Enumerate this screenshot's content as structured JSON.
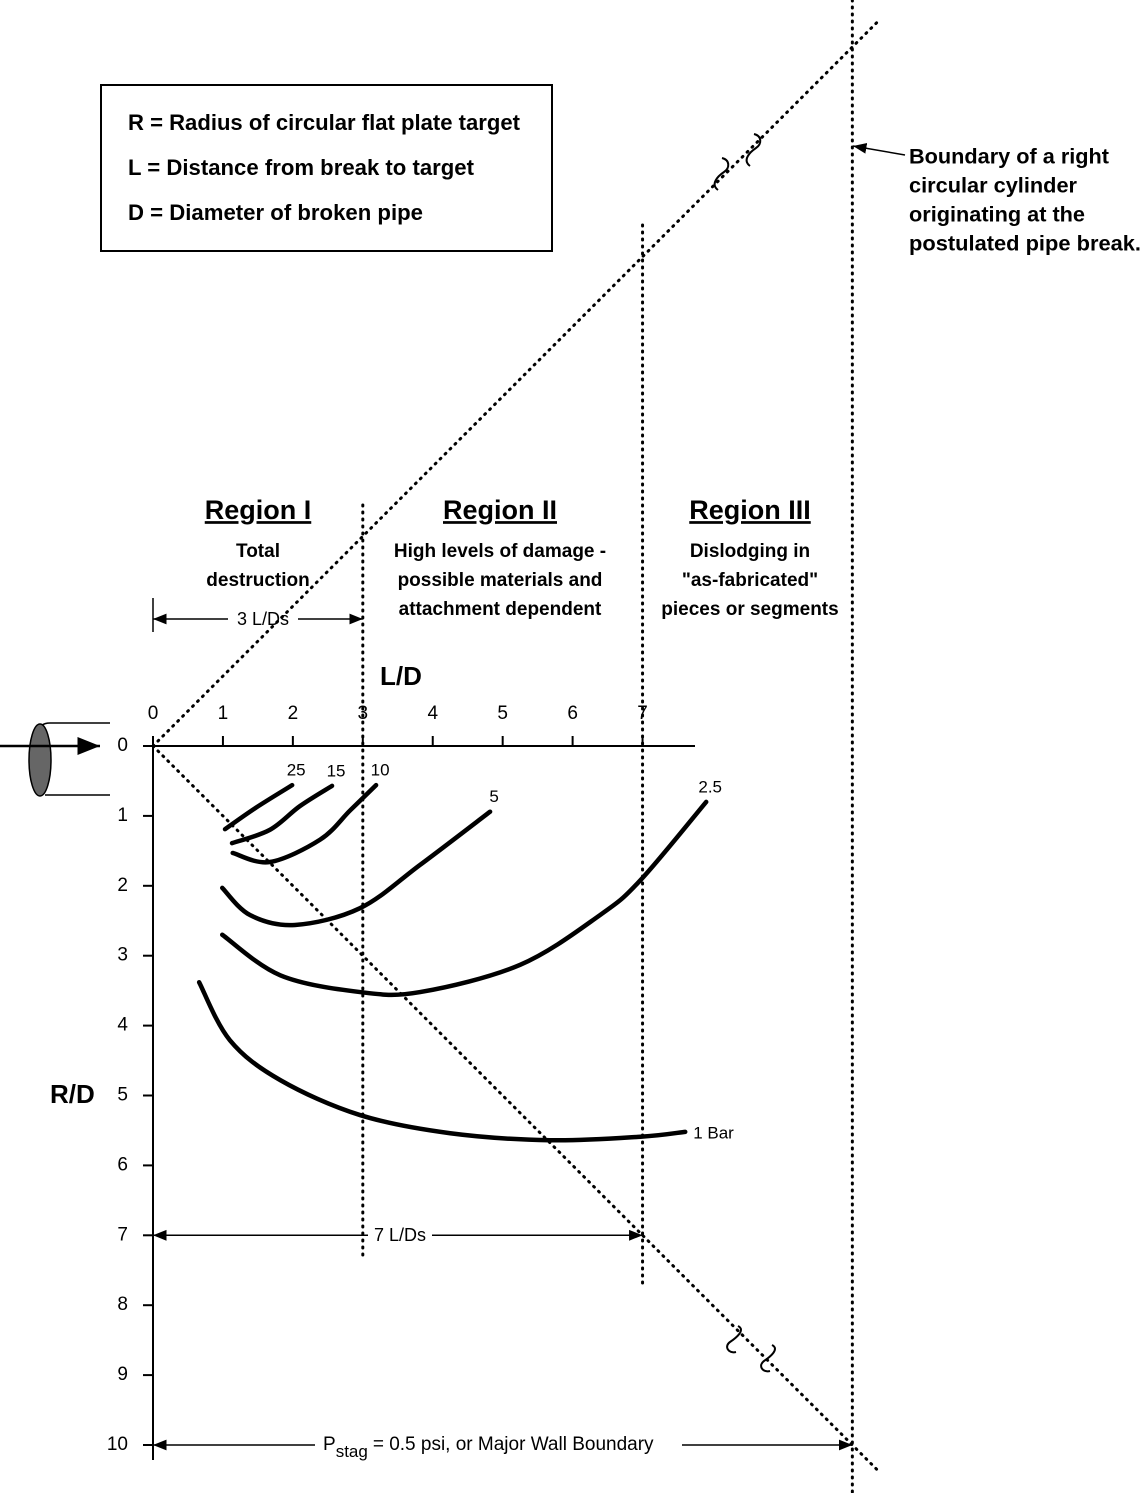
{
  "legend_box": {
    "lines": [
      "R = Radius of circular flat plate target",
      "L = Distance from break to target",
      "D = Diameter of broken pipe"
    ]
  },
  "boundary_note": {
    "lines": [
      "Boundary of a right",
      "circular cylinder",
      "originating at the",
      "postulated pipe break."
    ]
  },
  "chart_data": {
    "type": "line",
    "x_label": "L/D",
    "y_label": "R/D",
    "xlim": [
      0,
      7.75
    ],
    "ylim": [
      0,
      10
    ],
    "xticks": [
      0,
      1,
      2,
      3,
      4,
      5,
      6,
      7
    ],
    "yticks": [
      0,
      1,
      2,
      3,
      4,
      5,
      6,
      7,
      8,
      9,
      10
    ],
    "series": [
      {
        "name": "25",
        "color": "#000000",
        "x": [
          1.03,
          1.46,
          1.99
        ],
        "values": [
          1.19,
          0.89,
          0.56
        ]
      },
      {
        "name": "15",
        "color": "#000000",
        "x": [
          1.13,
          1.67,
          2.1,
          2.56
        ],
        "values": [
          1.39,
          1.2,
          0.86,
          0.57
        ]
      },
      {
        "name": "10",
        "color": "#000000",
        "x": [
          1.14,
          1.67,
          2.39,
          2.82,
          3.19
        ],
        "values": [
          1.53,
          1.66,
          1.34,
          0.92,
          0.56
        ]
      },
      {
        "name": "5",
        "color": "#000000",
        "x": [
          0.99,
          1.39,
          2.03,
          2.96,
          3.82,
          4.82
        ],
        "values": [
          2.03,
          2.42,
          2.56,
          2.32,
          1.7,
          0.94
        ]
      },
      {
        "name": "2.5",
        "color": "#000000",
        "x": [
          0.99,
          1.82,
          2.96,
          3.82,
          5.25,
          6.39,
          6.97,
          7.91
        ],
        "values": [
          2.7,
          3.28,
          3.52,
          3.52,
          3.13,
          2.42,
          1.92,
          0.8
        ]
      },
      {
        "name": "1 Bar",
        "color": "#000000",
        "x": [
          0.66,
          1.1,
          1.82,
          2.96,
          4.25,
          5.68,
          6.97,
          7.61
        ],
        "values": [
          3.38,
          4.21,
          4.78,
          5.28,
          5.54,
          5.64,
          5.59,
          5.52
        ]
      }
    ],
    "regions": [
      {
        "title": "Region I",
        "lines": [
          "Total",
          "destruction"
        ]
      },
      {
        "title": "Region II",
        "lines": [
          "High levels of damage -",
          "possible materials and",
          "attachment dependent"
        ]
      },
      {
        "title": "Region III",
        "lines": [
          "Dislodging in",
          "\"as-fabricated\"",
          "pieces or segments"
        ]
      }
    ],
    "dimensions": [
      "3 L/Ds",
      "7 L/Ds"
    ],
    "wall_boundary": {
      "symbol": "P",
      "subscript": "stag",
      "text": "= 0.5 psi, or Major Wall Boundary"
    }
  }
}
